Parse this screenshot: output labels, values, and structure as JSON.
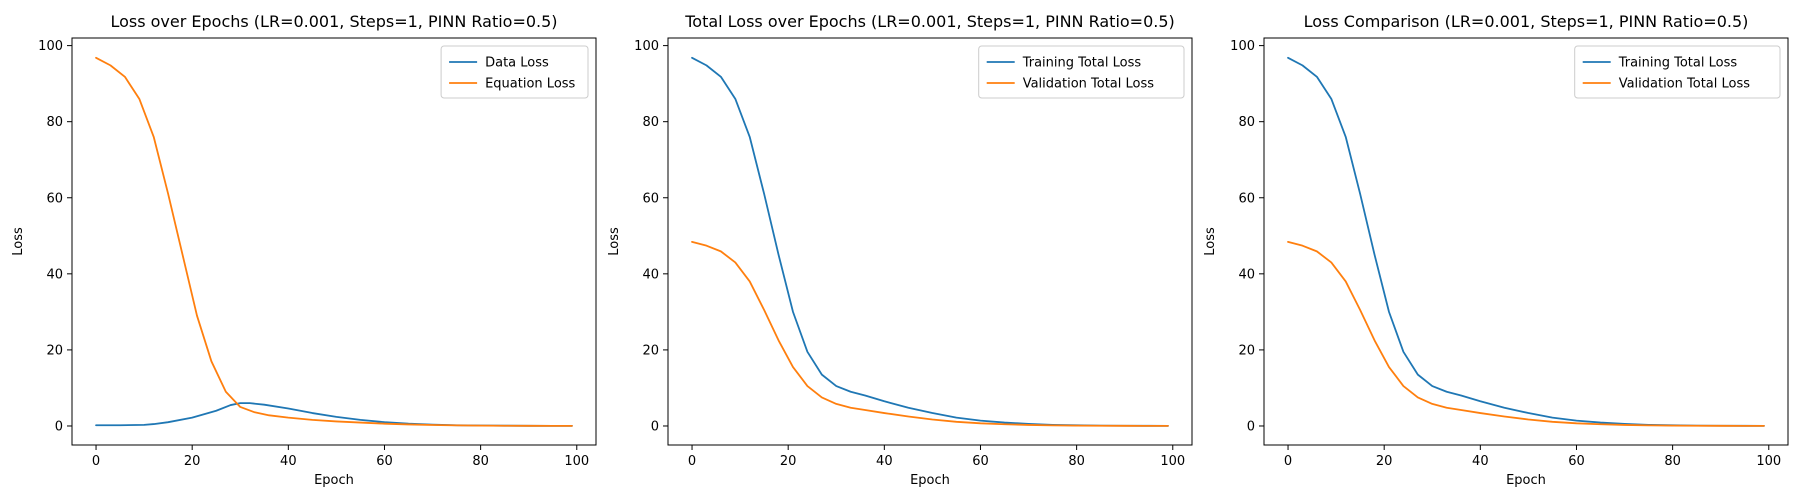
{
  "chart_data": [
    {
      "type": "line",
      "title": "Loss over Epochs (LR=0.001, Steps=1, PINN Ratio=0.5)",
      "xlabel": "Epoch",
      "ylabel": "Loss",
      "xlim": [
        -5,
        104
      ],
      "ylim": [
        -5,
        102
      ],
      "xticks": [
        0,
        20,
        40,
        60,
        80,
        100
      ],
      "yticks": [
        0,
        20,
        40,
        60,
        80,
        100
      ],
      "grid": false,
      "legend_position": "top-right",
      "series": [
        {
          "name": "Data Loss",
          "color": "#1f77b4",
          "x": [
            0,
            5,
            10,
            12,
            15,
            20,
            25,
            28,
            30,
            32,
            35,
            40,
            45,
            50,
            55,
            60,
            65,
            70,
            75,
            80,
            85,
            90,
            95,
            99
          ],
          "y": [
            0.2,
            0.2,
            0.3,
            0.5,
            1.0,
            2.2,
            4.0,
            5.5,
            6.0,
            6.0,
            5.6,
            4.6,
            3.4,
            2.4,
            1.6,
            1.0,
            0.6,
            0.35,
            0.2,
            0.12,
            0.08,
            0.05,
            0.03,
            0.02
          ]
        },
        {
          "name": "Equation Loss",
          "color": "#ff7f0e",
          "x": [
            0,
            3,
            6,
            9,
            12,
            15,
            18,
            21,
            24,
            27,
            30,
            33,
            36,
            40,
            45,
            50,
            55,
            60,
            65,
            70,
            75,
            80,
            85,
            90,
            95,
            99
          ],
          "y": [
            96.8,
            94.8,
            91.8,
            86.0,
            76.0,
            61.0,
            45.0,
            29.0,
            17.0,
            9.0,
            5.0,
            3.6,
            2.8,
            2.2,
            1.6,
            1.2,
            0.9,
            0.6,
            0.4,
            0.25,
            0.15,
            0.1,
            0.06,
            0.04,
            0.03,
            0.02
          ]
        }
      ]
    },
    {
      "type": "line",
      "title": "Total Loss over Epochs (LR=0.001, Steps=1, PINN Ratio=0.5)",
      "xlabel": "Epoch",
      "ylabel": "Loss",
      "xlim": [
        -5,
        104
      ],
      "ylim": [
        -5,
        102
      ],
      "xticks": [
        0,
        20,
        40,
        60,
        80,
        100
      ],
      "yticks": [
        0,
        20,
        40,
        60,
        80,
        100
      ],
      "grid": false,
      "legend_position": "top-right",
      "series": [
        {
          "name": "Training Total Loss",
          "color": "#1f77b4",
          "x": [
            0,
            3,
            6,
            9,
            12,
            15,
            18,
            21,
            24,
            27,
            30,
            33,
            36,
            40,
            45,
            50,
            55,
            60,
            65,
            70,
            75,
            80,
            85,
            90,
            95,
            99
          ],
          "y": [
            96.8,
            94.8,
            91.8,
            86.0,
            76.0,
            61.0,
            45.0,
            30.0,
            19.5,
            13.5,
            10.5,
            9.0,
            8.0,
            6.5,
            4.8,
            3.4,
            2.2,
            1.4,
            0.9,
            0.55,
            0.3,
            0.18,
            0.1,
            0.06,
            0.04,
            0.03
          ]
        },
        {
          "name": "Validation Total Loss",
          "color": "#ff7f0e",
          "x": [
            0,
            3,
            6,
            9,
            12,
            15,
            18,
            21,
            24,
            27,
            30,
            33,
            36,
            40,
            45,
            50,
            55,
            60,
            65,
            70,
            75,
            80,
            85,
            90,
            95,
            99
          ],
          "y": [
            48.4,
            47.4,
            45.9,
            43.0,
            38.0,
            30.5,
            22.5,
            15.5,
            10.5,
            7.5,
            5.8,
            4.8,
            4.2,
            3.4,
            2.5,
            1.7,
            1.1,
            0.7,
            0.45,
            0.28,
            0.16,
            0.1,
            0.06,
            0.04,
            0.03,
            0.02
          ]
        }
      ]
    },
    {
      "type": "line",
      "title": "Loss Comparison (LR=0.001, Steps=1, PINN Ratio=0.5)",
      "xlabel": "Epoch",
      "ylabel": "Loss",
      "xlim": [
        -5,
        104
      ],
      "ylim": [
        -5,
        102
      ],
      "xticks": [
        0,
        20,
        40,
        60,
        80,
        100
      ],
      "yticks": [
        0,
        20,
        40,
        60,
        80,
        100
      ],
      "grid": false,
      "legend_position": "top-right",
      "series": [
        {
          "name": "Training Total Loss",
          "color": "#1f77b4",
          "x": [
            0,
            3,
            6,
            9,
            12,
            15,
            18,
            21,
            24,
            27,
            30,
            33,
            36,
            40,
            45,
            50,
            55,
            60,
            65,
            70,
            75,
            80,
            85,
            90,
            95,
            99
          ],
          "y": [
            96.8,
            94.8,
            91.8,
            86.0,
            76.0,
            61.0,
            45.0,
            30.0,
            19.5,
            13.5,
            10.5,
            9.0,
            8.0,
            6.5,
            4.8,
            3.4,
            2.2,
            1.4,
            0.9,
            0.55,
            0.3,
            0.18,
            0.1,
            0.06,
            0.04,
            0.03
          ]
        },
        {
          "name": "Validation Total Loss",
          "color": "#ff7f0e",
          "x": [
            0,
            3,
            6,
            9,
            12,
            15,
            18,
            21,
            24,
            27,
            30,
            33,
            36,
            40,
            45,
            50,
            55,
            60,
            65,
            70,
            75,
            80,
            85,
            90,
            95,
            99
          ],
          "y": [
            48.4,
            47.4,
            45.9,
            43.0,
            38.0,
            30.5,
            22.5,
            15.5,
            10.5,
            7.5,
            5.8,
            4.8,
            4.2,
            3.4,
            2.5,
            1.7,
            1.1,
            0.7,
            0.45,
            0.28,
            0.16,
            0.1,
            0.06,
            0.04,
            0.03,
            0.02
          ]
        }
      ]
    }
  ]
}
